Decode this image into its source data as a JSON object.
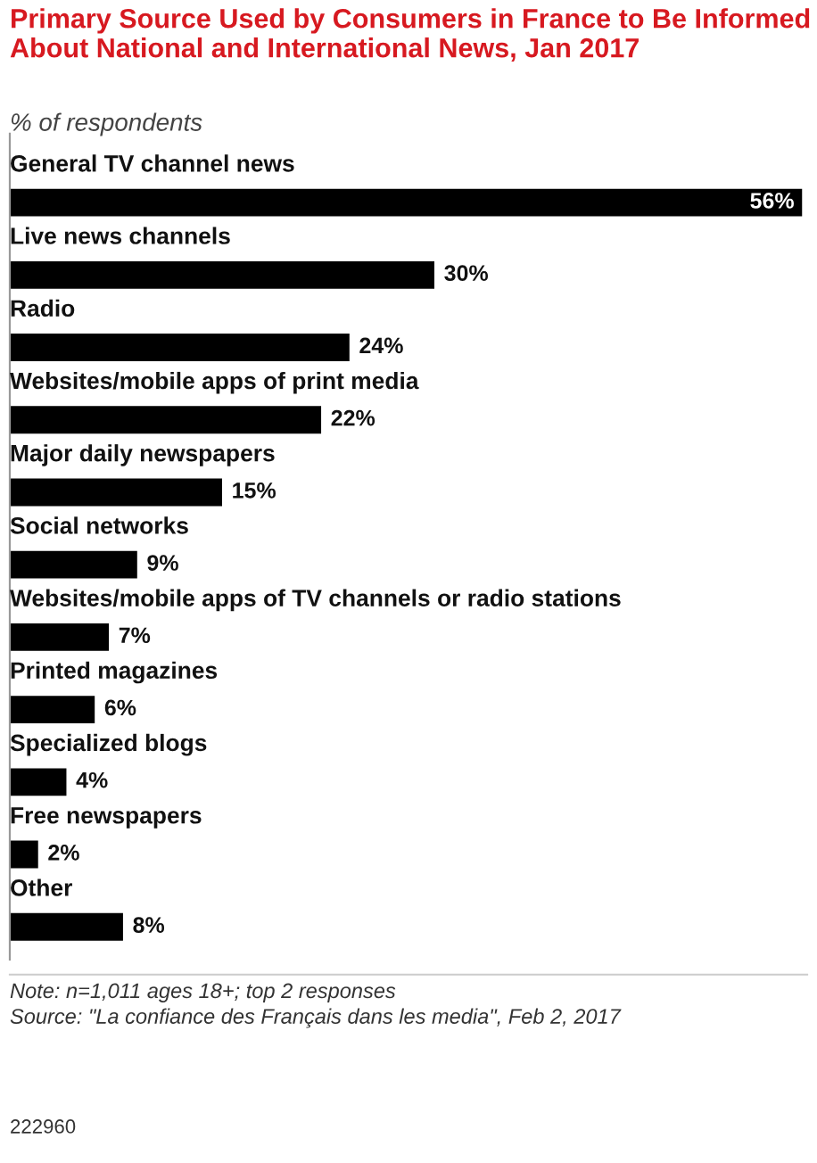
{
  "chart_data": {
    "type": "bar",
    "orientation": "horizontal",
    "title": "Primary Source Used by Consumers in France to Be Informed About National and International News, Jan 2017",
    "subtitle": "% of respondents",
    "categories": [
      "General TV channel news",
      "Live news channels",
      "Radio",
      "Websites/mobile apps of print media",
      "Major daily newspapers",
      "Social networks",
      "Websites/mobile apps of TV channels or radio stations",
      "Printed magazines",
      "Specialized blogs",
      "Free newspapers",
      "Other"
    ],
    "values": [
      56,
      30,
      24,
      22,
      15,
      9,
      7,
      6,
      4,
      2,
      8
    ],
    "value_labels": [
      "56%",
      "30%",
      "24%",
      "22%",
      "15%",
      "9%",
      "7%",
      "6%",
      "4%",
      "2%",
      "8%"
    ],
    "color": "#000000",
    "annotations": [
      "Note: n=1,011 ages 18+; top 2 responses",
      "Source: \"La confiance des Français dans les media\", Feb 2, 2017",
      "222960"
    ],
    "legend": false
  }
}
